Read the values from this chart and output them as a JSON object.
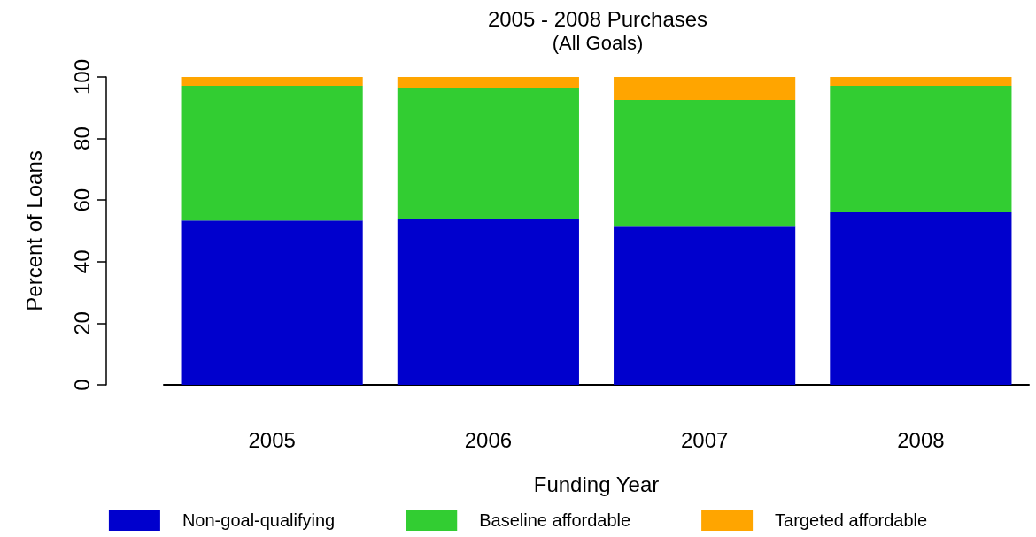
{
  "chart_data": {
    "type": "bar",
    "title": "2005 - 2008 Purchases",
    "subtitle": "(All Goals)",
    "xlabel": "Funding Year",
    "ylabel": "Percent of Loans",
    "categories": [
      "2005",
      "2006",
      "2007",
      "2008"
    ],
    "series": [
      {
        "name": "Non-goal-qualifying",
        "color": "#0000cd",
        "values": [
          53.4,
          54.0,
          51.4,
          56.0
        ]
      },
      {
        "name": "Baseline affordable",
        "color": "#32cd32",
        "values": [
          43.7,
          42.3,
          41.1,
          41.1
        ]
      },
      {
        "name": "Targeted affordable",
        "color": "#ffa500",
        "values": [
          2.9,
          3.7,
          7.5,
          2.9
        ]
      }
    ],
    "stacked": true,
    "ylim": [
      0,
      100
    ],
    "yticks": [
      0,
      20,
      40,
      60,
      80,
      100
    ],
    "grid": false,
    "legend": "bottom"
  }
}
